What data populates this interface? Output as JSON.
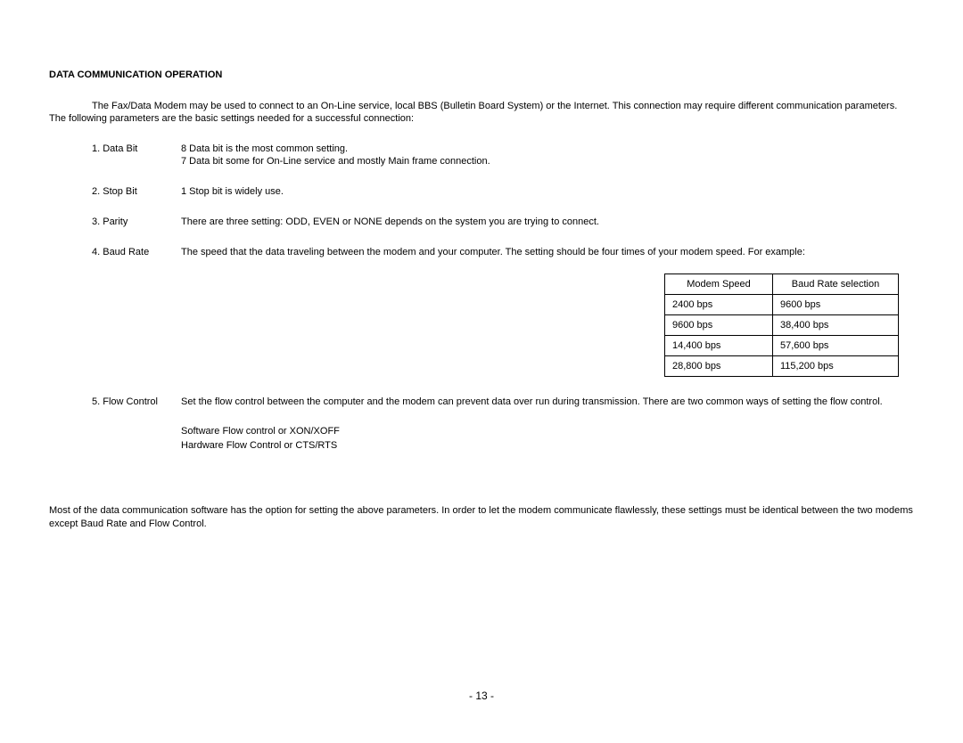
{
  "heading": "DATA COMMUNICATION OPERATION",
  "intro": "The Fax/Data Modem may be used to connect to an On-Line service, local BBS  (Bulletin Board System) or the Internet.  This connection may require different communication parameters.  The following parameters are the basic settings needed for a successful connection:",
  "params": {
    "p1": {
      "key": "1. Data Bit",
      "lineA": "8 Data bit is the most common setting.",
      "lineB": "7 Data bit some for On-Line service and mostly Main frame connection."
    },
    "p2": {
      "key": "2. Stop Bit",
      "lineA": "1 Stop bit is widely use."
    },
    "p3": {
      "key": "3. Parity",
      "lineA": "There are three setting: ODD, EVEN or NONE depends on the system you are trying to connect."
    },
    "p4": {
      "key": "4. Baud Rate",
      "lineA": "The speed that the data traveling between the modem and your computer.  The setting should be four times of your modem speed. For example:"
    },
    "p5": {
      "key": "5. Flow Control",
      "lineA": "Set the flow control between the computer and the modem can prevent data over run during transmission.  There are two common ways of setting the flow control."
    }
  },
  "table": {
    "h1": "Modem Speed",
    "h2": "Baud Rate selection",
    "rows": [
      {
        "c1": "2400 bps",
        "c2": "9600 bps"
      },
      {
        "c1": "9600 bps",
        "c2": "38,400 bps"
      },
      {
        "c1": "14,400 bps",
        "c2": "57,600 bps"
      },
      {
        "c1": "28,800 bps",
        "c2": "115,200 bps"
      }
    ]
  },
  "flowopts": {
    "a": "Software Flow control or XON/XOFF",
    "b": "Hardware Flow Control or CTS/RTS"
  },
  "closing": "Most of the data communication software has the option for setting  the above parameters.  In order to let the modem communicate flawlessly, these settings must be identical between the two modems except Baud Rate and Flow Control.",
  "pagenum": "-  13  -"
}
